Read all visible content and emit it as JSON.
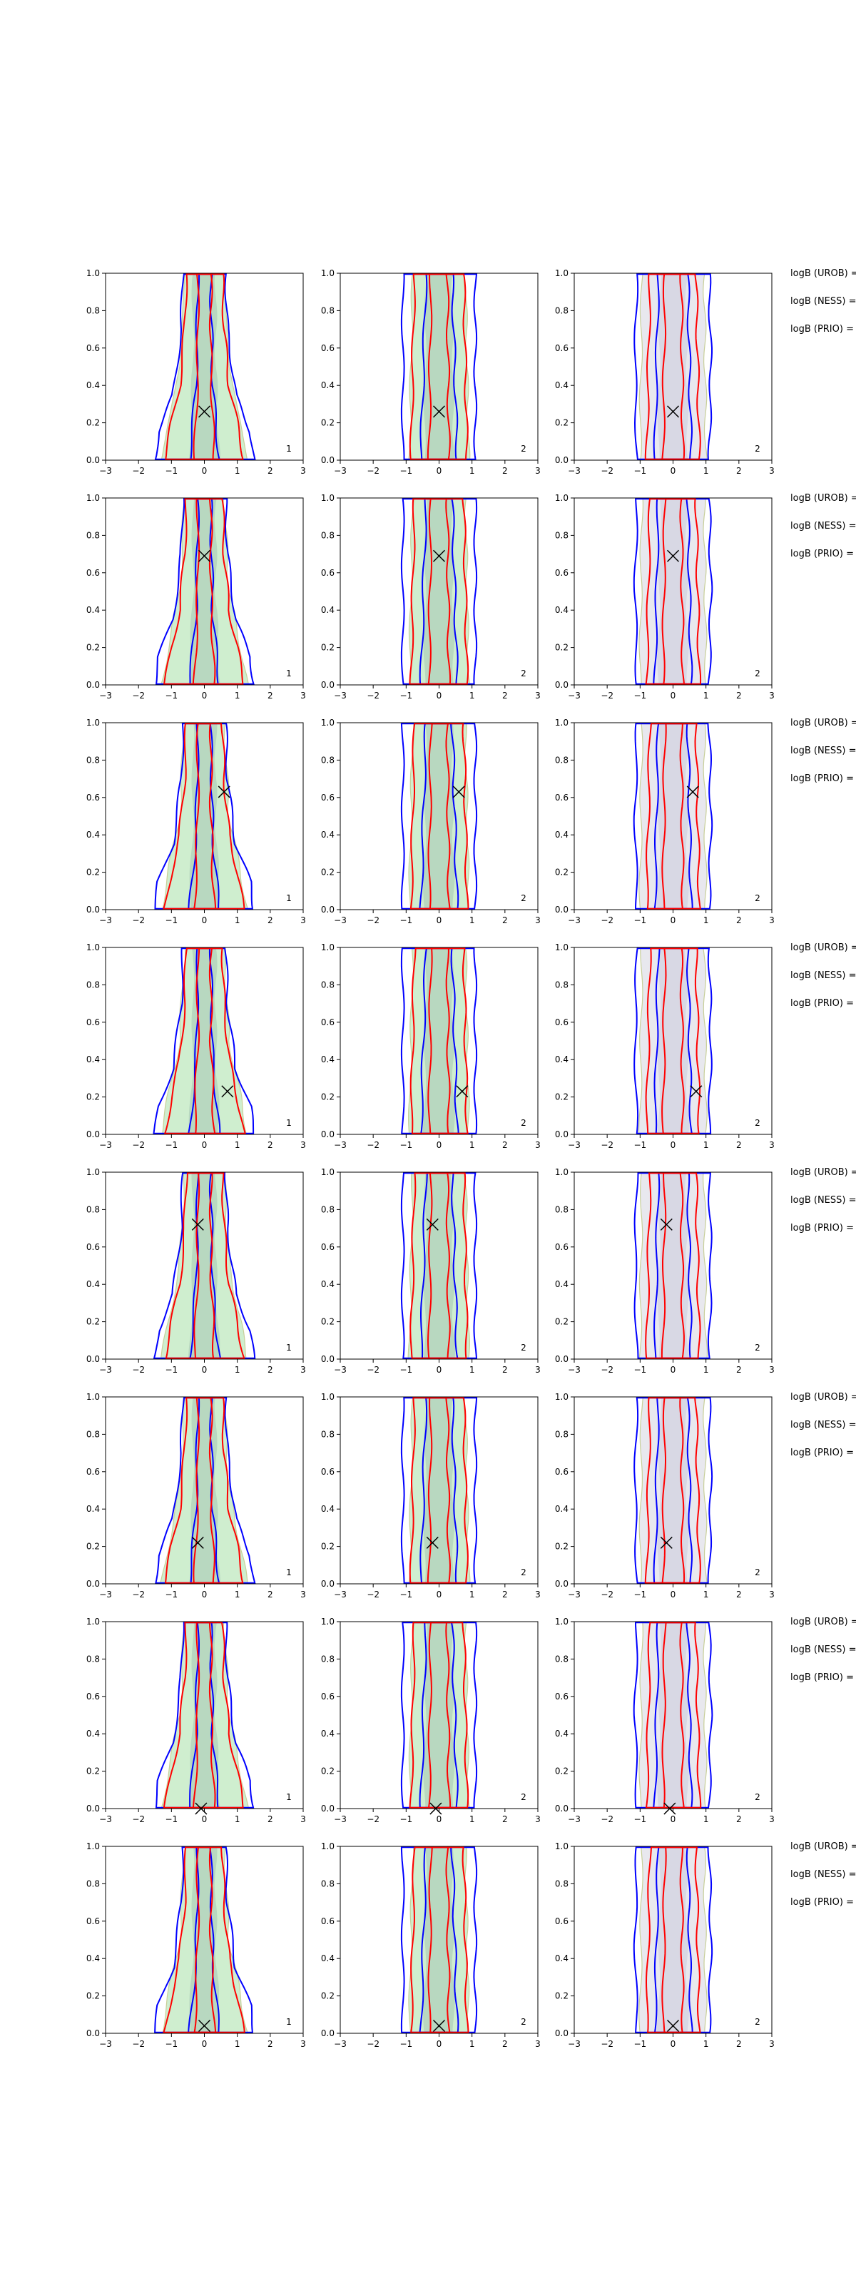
{
  "figure": {
    "row_side_labels": [
      "logB (UROB) =",
      "logB (NESS) =",
      "logB (PRIO) ="
    ]
  },
  "chart_data": {
    "type": "contour",
    "layout": {
      "rows": 8,
      "cols": 3
    },
    "xlim": [
      -3,
      3
    ],
    "ylim": [
      0.0,
      1.0
    ],
    "xticks": [
      -3,
      -2,
      -1,
      0,
      1,
      2,
      3
    ],
    "yticks": [
      0.0,
      0.2,
      0.4,
      0.6,
      0.8,
      1.0
    ],
    "xtick_labels": [
      "−3",
      "−2",
      "−1",
      "0",
      "1",
      "2",
      "3"
    ],
    "ytick_labels": [
      "0.0",
      "0.2",
      "0.4",
      "0.6",
      "0.8",
      "1.0"
    ],
    "grid": false,
    "colors": {
      "blue_contour": "#0000ff",
      "red_contour": "#ff0000",
      "col0_fill": "#cfeecf",
      "col1_fill": "#cfeecf",
      "col2_fill": "#e8e8ee",
      "fill_edge_olive": "#c8cf9a",
      "marker": "#000000"
    },
    "column_corner_labels": [
      "1",
      "2",
      "2"
    ],
    "truth_markers": [
      {
        "row": 1,
        "x": 0.0,
        "y": 0.26
      },
      {
        "row": 2,
        "x": 0.0,
        "y": 0.69
      },
      {
        "row": 3,
        "x": 0.6,
        "y": 0.63
      },
      {
        "row": 4,
        "x": 0.7,
        "y": 0.23
      },
      {
        "row": 5,
        "x": -0.2,
        "y": 0.72
      },
      {
        "row": 6,
        "x": -0.2,
        "y": 0.22
      },
      {
        "row": 7,
        "x": -0.1,
        "y": 0.0
      },
      {
        "row": 8,
        "x": 0.0,
        "y": 0.04
      }
    ],
    "contour_widths": {
      "row_profiles": [
        {
          "row": 1,
          "col": 0,
          "blue_outer": [
            [
              0,
              1.6
            ],
            [
              0.1,
              1.55
            ],
            [
              0.3,
              0.9
            ],
            [
              0.6,
              0.7
            ],
            [
              1,
              0.6
            ]
          ],
          "blue_inner": [
            [
              0,
              0.5
            ],
            [
              0.5,
              0.25
            ],
            [
              1,
              0.25
            ]
          ],
          "red_outer": [
            [
              0,
              1.2
            ],
            [
              0.3,
              0.7
            ],
            [
              1,
              0.5
            ]
          ],
          "red_inner": [
            [
              0,
              0.35
            ],
            [
              1,
              0.2
            ]
          ],
          "fill": [
            [
              0,
              1.3
            ],
            [
              0.3,
              0.8
            ],
            [
              1,
              0.6
            ]
          ]
        },
        {
          "row": 1,
          "col": 1,
          "blue_outer": [
            [
              0,
              1.2
            ],
            [
              0.5,
              1.2
            ],
            [
              0.95,
              1.1
            ],
            [
              1,
              1.1
            ]
          ],
          "blue_inner": [
            [
              0,
              0.6
            ],
            [
              1,
              0.4
            ]
          ],
          "red_outer": [
            [
              0,
              0.9
            ],
            [
              1,
              0.8
            ]
          ],
          "red_inner": [
            [
              0,
              0.35
            ],
            [
              1,
              0.3
            ]
          ],
          "fill": [
            [
              0,
              0.9
            ],
            [
              1,
              0.8
            ]
          ]
        },
        {
          "row": 1,
          "col": 2,
          "blue_outer": [
            [
              0,
              1.2
            ],
            [
              0.5,
              1.2
            ],
            [
              1,
              1.1
            ]
          ],
          "blue_inner": [
            [
              0,
              0.6
            ],
            [
              1,
              0.4
            ]
          ],
          "red_outer": [
            [
              0,
              0.8
            ],
            [
              1,
              0.7
            ]
          ],
          "red_inner": [
            [
              0,
              0.35
            ],
            [
              1,
              0.3
            ]
          ],
          "fill": [
            [
              0,
              1.0
            ],
            [
              1,
              0.9
            ]
          ]
        }
      ]
    }
  }
}
